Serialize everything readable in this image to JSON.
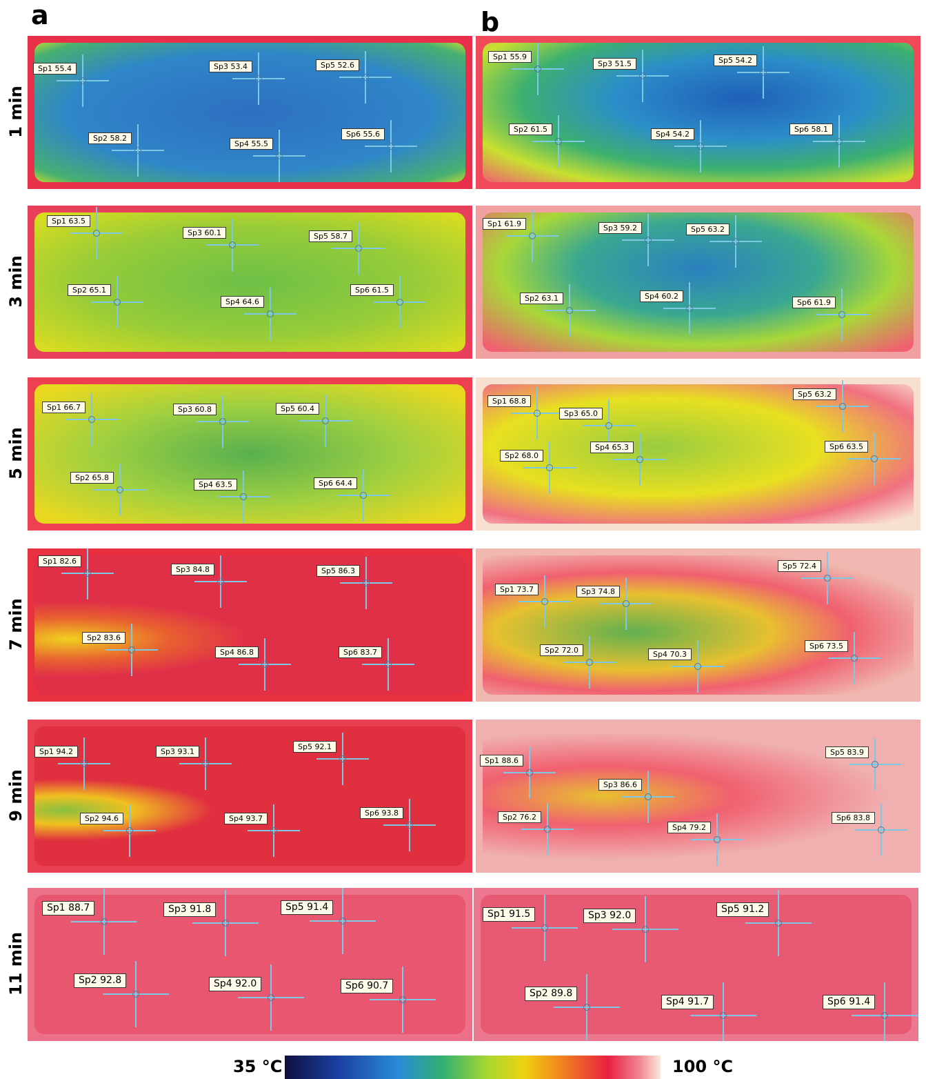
{
  "panels": [
    "a",
    "b"
  ],
  "colorbar": {
    "min": "35 °C",
    "max": "100 °C"
  },
  "rows": [
    {
      "time": "1 min",
      "a": [
        "Sp1 55.4",
        "Sp2 58.2",
        "Sp3 53.4",
        "Sp4 55.5",
        "Sp5 52.6",
        "Sp6 55.6"
      ],
      "b": [
        "Sp1 55.9",
        "Sp2 61.5",
        "Sp3 51.5",
        "Sp4 54.2",
        "Sp5 54.2",
        "Sp6 58.1"
      ]
    },
    {
      "time": "3 min",
      "a": [
        "Sp1 63.5",
        "Sp2 65.1",
        "Sp3 60.1",
        "Sp4 64.6",
        "Sp5 58.7",
        "Sp6 61.5"
      ],
      "b": [
        "Sp1 61.9",
        "Sp2 63.1",
        "Sp3 59.2",
        "Sp4 60.2",
        "Sp5 63.2",
        "Sp6 61.9"
      ]
    },
    {
      "time": "5 min",
      "a": [
        "Sp1 66.7",
        "Sp2 65.8",
        "Sp3 60.8",
        "Sp4 63.5",
        "Sp5 60.4",
        "Sp6 64.4"
      ],
      "b": [
        "Sp1 68.8",
        "Sp2 68.0",
        "Sp3 65.0",
        "Sp4 65.3",
        "Sp5 63.2",
        "Sp6 63.5"
      ]
    },
    {
      "time": "7 min",
      "a": [
        "Sp1 82.6",
        "Sp2 83.6",
        "Sp3 84.8",
        "Sp4 86.8",
        "Sp5 86.3",
        "Sp6 83.7"
      ],
      "b": [
        "Sp1 73.7",
        "Sp2 72.0",
        "Sp3 74.8",
        "Sp4 70.3",
        "Sp5 72.4",
        "Sp6 73.5"
      ]
    },
    {
      "time": "9 min",
      "a": [
        "Sp1 94.2",
        "Sp2 94.6",
        "Sp3 93.1",
        "Sp4 93.7",
        "Sp5 92.1",
        "Sp6 93.8"
      ],
      "b": [
        "Sp1 88.6",
        "Sp2 76.2",
        "Sp3 86.6",
        "Sp4 79.2",
        "Sp5 83.9",
        "Sp6 83.8"
      ]
    },
    {
      "time": "11 min",
      "a": [
        "Sp1 88.7",
        "Sp2 92.8",
        "Sp3 91.8",
        "Sp4 92.0",
        "Sp5 91.4",
        "Sp6 90.7"
      ],
      "b": [
        "Sp1 91.5",
        "Sp2 89.8",
        "Sp3 92.0",
        "Sp4 91.7",
        "Sp5 91.2",
        "Sp6 91.4"
      ]
    }
  ]
}
